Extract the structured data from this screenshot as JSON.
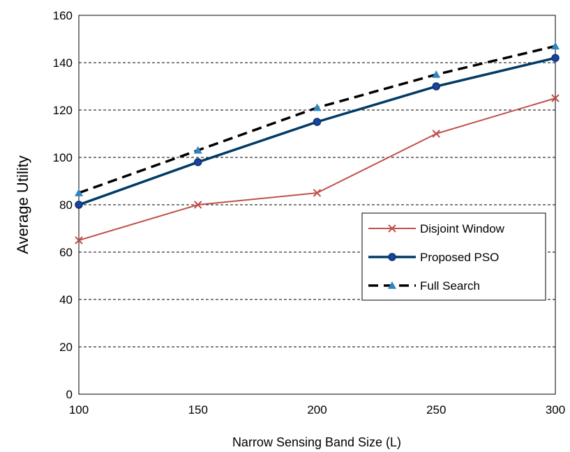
{
  "chart_data": {
    "type": "line",
    "title": "",
    "xlabel": "Narrow Sensing Band Size (L)",
    "ylabel": "Average Utility",
    "x": [
      100,
      150,
      200,
      250,
      300
    ],
    "x_ticks": [
      "100",
      "150",
      "200",
      "250",
      "300"
    ],
    "y_ticks": [
      "0",
      "20",
      "40",
      "60",
      "80",
      "100",
      "120",
      "140",
      "160"
    ],
    "xlim": [
      100,
      300
    ],
    "ylim": [
      0,
      160
    ],
    "grid": "horizontal-dashed",
    "legend_position": "right",
    "series": [
      {
        "name": "Disjoint Window",
        "values": [
          65,
          80,
          85,
          110,
          125
        ],
        "color": "#c0504d",
        "marker": "x",
        "line_style": "solid"
      },
      {
        "name": "Proposed PSO",
        "values": [
          80,
          98,
          115,
          130,
          142
        ],
        "color": "#003a66",
        "marker": "circle",
        "marker_color": "#1f3fa8",
        "line_style": "solid"
      },
      {
        "name": "Full Search",
        "values": [
          85,
          103,
          121,
          135,
          147
        ],
        "color": "#000000",
        "marker": "triangle",
        "marker_color": "#2e86c1",
        "line_style": "dashed"
      }
    ]
  }
}
